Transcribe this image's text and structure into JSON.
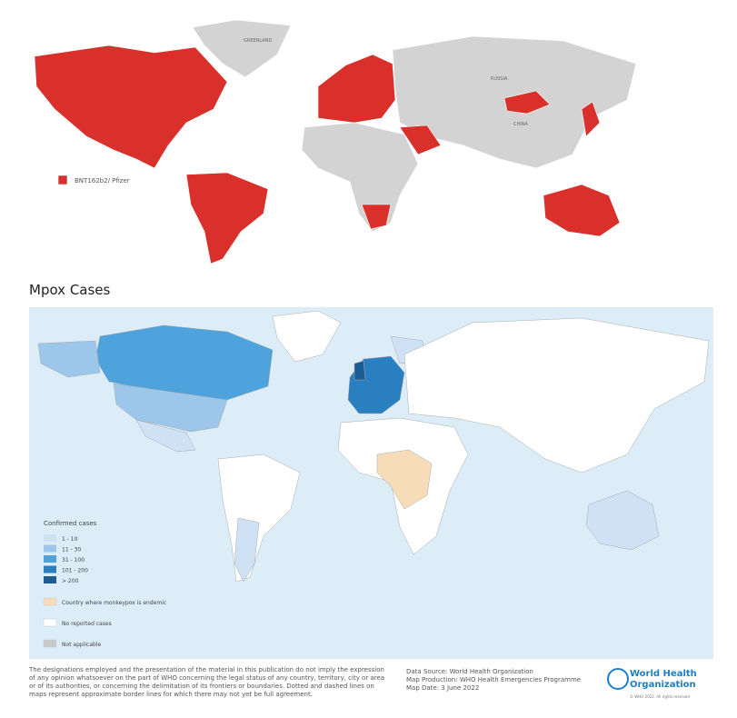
{
  "vaccine_map": {
    "legend": "BNT162b2/ Pfizer",
    "labels": [
      "GREENLAND",
      "RUSSIA",
      "CHINA"
    ]
  },
  "mpox_map": {
    "title": "Mpox Cases",
    "legend_title": "Confirmed cases",
    "legend": [
      {
        "label": "1 - 10",
        "color": "#cfe2f5"
      },
      {
        "label": "11 - 30",
        "color": "#9cc6ea"
      },
      {
        "label": "31 - 100",
        "color": "#4fa3dc"
      },
      {
        "label": "101 - 200",
        "color": "#2a7fc0"
      },
      {
        "label": "> 200",
        "color": "#1c5d92"
      }
    ],
    "other_legend": [
      {
        "label": "Country where monkeypox is endemic",
        "color": "#f6dcb8"
      },
      {
        "label": "No reported cases",
        "color": "#ffffff"
      },
      {
        "label": "Not applicable",
        "color": "#c8c8c8"
      }
    ]
  },
  "footer": {
    "disclaimer": "The designations employed and the presentation of the material in this publication do not imply the expression of any opinion whatsoever on the part of WHO concerning the legal status of any country, territory, city or area or of its authorities, or concerning the delimitation of its frontiers or boundaries. Dotted and dashed lines on maps represent approximate border lines for which there may not yet be full agreement.",
    "source": [
      "Data Source: World Health Organization",
      "Map Production: WHO Health Emergencies Programme",
      "Map Date: 3 June 2022"
    ],
    "org": [
      "World Health",
      "Organization"
    ],
    "copyright": "© WHO 2022. All rights reserved"
  }
}
